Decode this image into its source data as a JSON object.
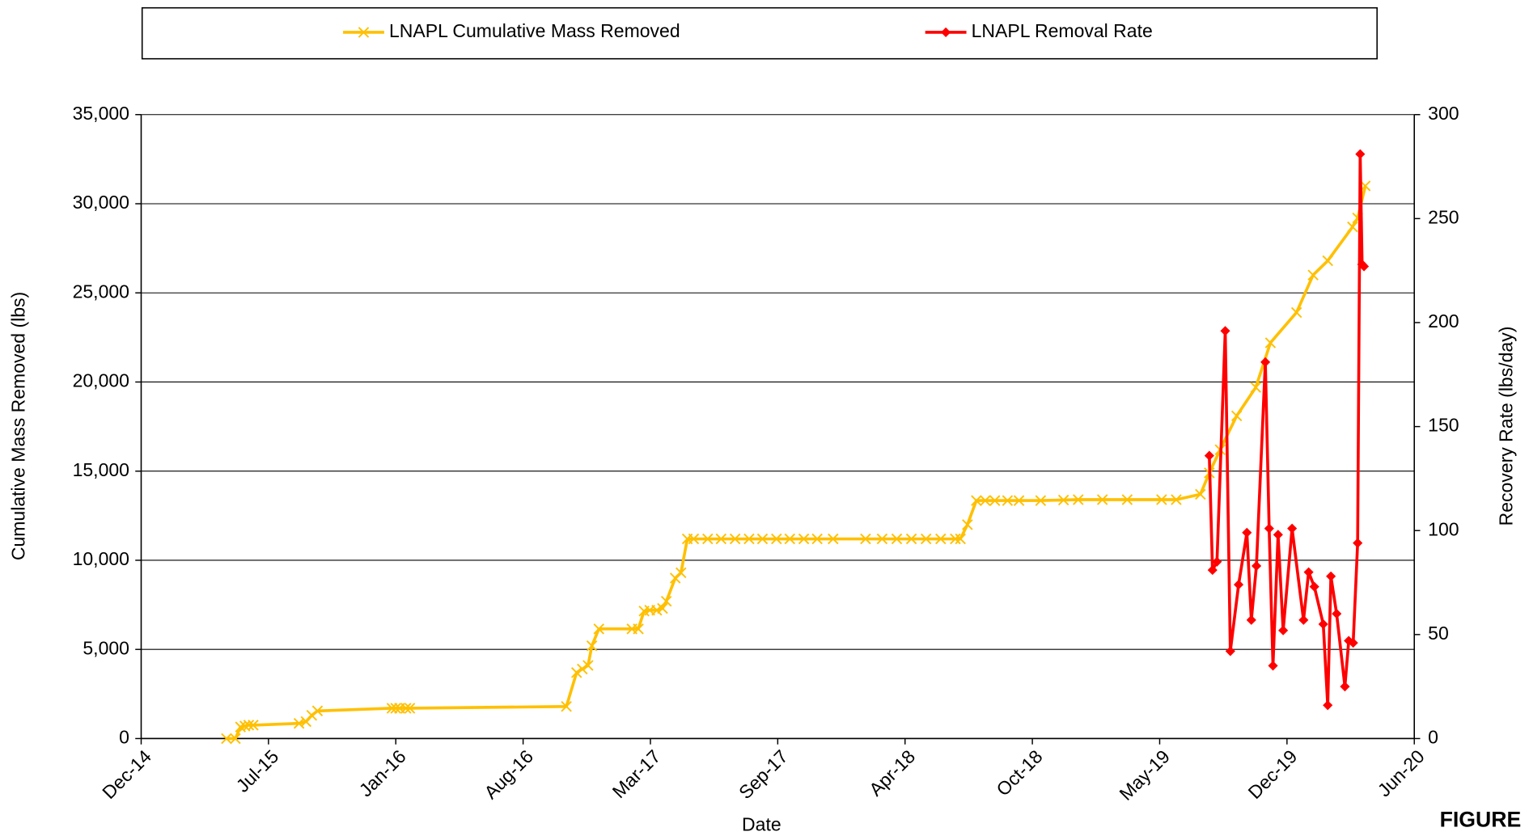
{
  "chart_data": {
    "type": "line",
    "xlabel": "Date",
    "ylabel": "Cumulative Mass Removed (lbs)",
    "y2label": "Recovery Rate (lbs/day)",
    "annotation": "FIGURE",
    "xlim": [
      42000,
      44000
    ],
    "xticks": [
      {
        "value": 42000,
        "label": "Dec-14"
      },
      {
        "value": 42200,
        "label": "Jul-15"
      },
      {
        "value": 42400,
        "label": "Jan-16"
      },
      {
        "value": 42600,
        "label": "Aug-16"
      },
      {
        "value": 42800,
        "label": "Mar-17"
      },
      {
        "value": 43000,
        "label": "Sep-17"
      },
      {
        "value": 43200,
        "label": "Apr-18"
      },
      {
        "value": 43400,
        "label": "Oct-18"
      },
      {
        "value": 43600,
        "label": "May-19"
      },
      {
        "value": 43800,
        "label": "Dec-19"
      },
      {
        "value": 44000,
        "label": "Jun-20"
      }
    ],
    "ylim": [
      0,
      35000
    ],
    "yticks": [
      0,
      {
        "value": 5000,
        "label": "5,000"
      },
      {
        "value": 10000,
        "label": "10,000"
      },
      {
        "value": 15000,
        "label": "15,000"
      },
      {
        "value": 20000,
        "label": "20,000"
      },
      {
        "value": 25000,
        "label": "25,000"
      },
      {
        "value": 30000,
        "label": "30,000"
      },
      {
        "value": 35000,
        "label": "35,000"
      }
    ],
    "y2lim": [
      0,
      300
    ],
    "y2ticks": [
      0,
      50,
      100,
      150,
      200,
      250,
      300
    ],
    "grid": true,
    "legend": "top",
    "series": [
      {
        "name": "LNAPL Cumulative Mass Removed",
        "color": "#FFC000",
        "marker": "x",
        "x": [
          42134,
          42148,
          42156,
          42163,
          42169,
          42176,
          42248,
          42259,
          42268,
          42277,
          42394,
          42400,
          42406,
          42416,
          42422,
          42668,
          42684,
          42693,
          42702,
          42708,
          42719,
          42771,
          42781,
          42790,
          42799,
          42810,
          42819,
          42825,
          42839,
          42848,
          42858,
          42868,
          42890,
          42911,
          42933,
          42955,
          42976,
          42998,
          43019,
          43041,
          43062,
          43087,
          43138,
          43164,
          43187,
          43210,
          43233,
          43256,
          43279,
          43287,
          43298,
          43312,
          43326,
          43341,
          43361,
          43379,
          43413,
          43449,
          43472,
          43510,
          43549,
          43603,
          43626,
          43664,
          43678,
          43695,
          43721,
          43751,
          43774,
          43815,
          43841,
          43864,
          43903,
          43911,
          43923
        ],
        "values": [
          0,
          0,
          650,
          700,
          750,
          750,
          850,
          950,
          1300,
          1550,
          1700,
          1700,
          1700,
          1700,
          1700,
          1800,
          3700,
          3900,
          4100,
          5200,
          6150,
          6150,
          6150,
          7150,
          7200,
          7200,
          7300,
          7700,
          9000,
          9300,
          11200,
          11200,
          11200,
          11200,
          11200,
          11200,
          11200,
          11200,
          11200,
          11200,
          11200,
          11200,
          11200,
          11200,
          11200,
          11200,
          11200,
          11200,
          11200,
          11200,
          12000,
          13350,
          13350,
          13350,
          13350,
          13350,
          13350,
          13380,
          13400,
          13400,
          13400,
          13400,
          13400,
          13700,
          14900,
          16200,
          18100,
          19700,
          22200,
          23900,
          26000,
          26800,
          28700,
          29200,
          31000
        ]
      },
      {
        "name": "LNAPL Removal Rate",
        "color": "#FF0000",
        "marker": "diamond",
        "axis": "y2",
        "x": [
          43678,
          43683,
          43690,
          43703,
          43711,
          43724,
          43737,
          43744,
          43752,
          43766,
          43772,
          43778,
          43786,
          43794,
          43808,
          43826,
          43834,
          43843,
          43857,
          43864,
          43869,
          43878,
          43891,
          43897,
          43904,
          43911,
          43915,
          43918,
          43921
        ],
        "values": [
          136,
          81,
          85,
          196,
          42,
          74,
          99,
          57,
          83,
          181,
          101,
          35,
          98,
          52,
          101,
          57,
          80,
          73,
          55,
          16,
          78,
          60,
          25,
          47,
          46,
          94,
          281,
          228,
          227
        ]
      }
    ]
  }
}
